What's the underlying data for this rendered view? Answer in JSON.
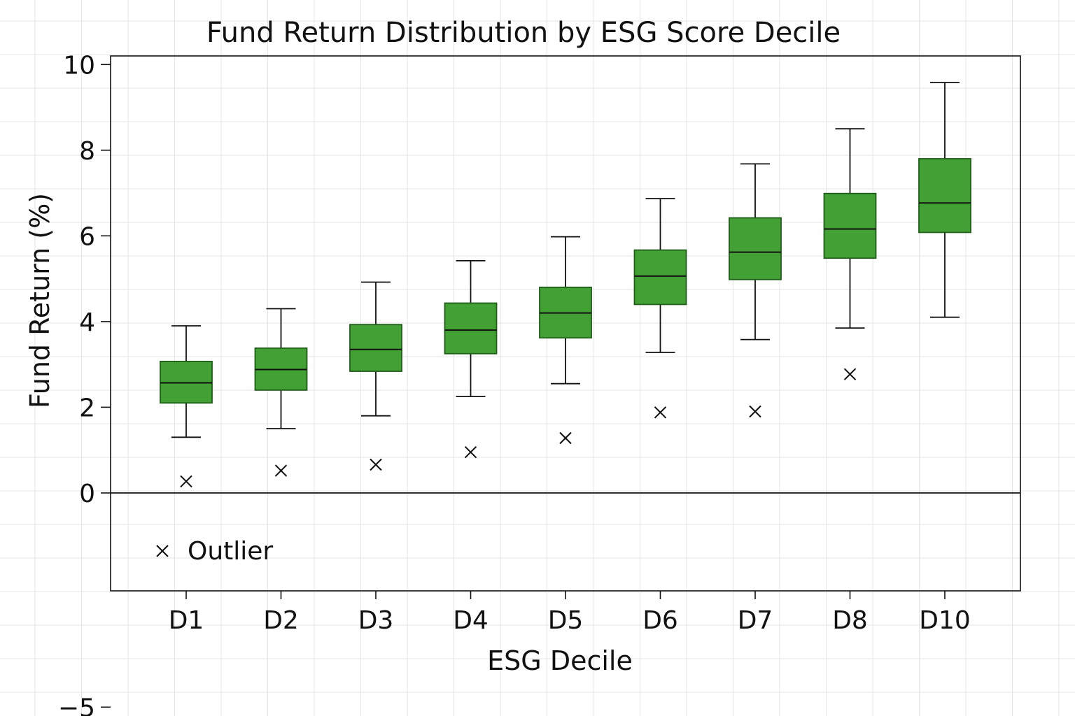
{
  "chart_data": {
    "type": "box",
    "title": "Fund Return Distribution by ESG Score Decile",
    "xlabel": "ESG Decile",
    "ylabel": "Fund Return (%)",
    "ylim": [
      -7.3,
      10.2
    ],
    "yticks": [
      {
        "value": 10,
        "label": "10"
      },
      {
        "value": 8,
        "label": "8"
      },
      {
        "value": 6,
        "label": "6"
      },
      {
        "value": 4,
        "label": "4"
      },
      {
        "value": 2,
        "label": "2"
      },
      {
        "value": 0,
        "label": "0"
      },
      {
        "value": -5,
        "label": "−5"
      }
    ],
    "grid": true,
    "legend": {
      "position": "bottom-left",
      "entries": [
        {
          "marker": "x",
          "label": "Outlier"
        }
      ]
    },
    "colors": {
      "box_fill": "#43a034",
      "box_edge": "#1f5e18",
      "line": "#111111"
    },
    "categories": [
      "D1",
      "D2",
      "D3",
      "D4",
      "D5",
      "D6",
      "D7",
      "D8",
      "D10"
    ],
    "boxes": [
      {
        "category": "D1",
        "whisker_low": 1.3,
        "q1": 2.1,
        "median": 2.57,
        "q3": 3.07,
        "whisker_high": 3.9,
        "outliers": [
          0.27
        ]
      },
      {
        "category": "D2",
        "whisker_low": 1.5,
        "q1": 2.4,
        "median": 2.88,
        "q3": 3.38,
        "whisker_high": 4.3,
        "outliers": [
          0.52
        ]
      },
      {
        "category": "D3",
        "whisker_low": 1.8,
        "q1": 2.84,
        "median": 3.35,
        "q3": 3.93,
        "whisker_high": 4.92,
        "outliers": [
          0.66
        ]
      },
      {
        "category": "D4",
        "whisker_low": 2.25,
        "q1": 3.25,
        "median": 3.8,
        "q3": 4.43,
        "whisker_high": 5.42,
        "outliers": [
          0.95
        ]
      },
      {
        "category": "D5",
        "whisker_low": 2.55,
        "q1": 3.62,
        "median": 4.2,
        "q3": 4.8,
        "whisker_high": 5.98,
        "outliers": [
          1.28
        ]
      },
      {
        "category": "D6",
        "whisker_low": 3.28,
        "q1": 4.4,
        "median": 5.06,
        "q3": 5.67,
        "whisker_high": 6.87,
        "outliers": [
          1.88
        ]
      },
      {
        "category": "D7",
        "whisker_low": 3.58,
        "q1": 4.98,
        "median": 5.62,
        "q3": 6.42,
        "whisker_high": 7.68,
        "outliers": [
          1.9
        ]
      },
      {
        "category": "D8",
        "whisker_low": 3.85,
        "q1": 5.48,
        "median": 6.16,
        "q3": 6.99,
        "whisker_high": 8.5,
        "outliers": [
          2.77
        ]
      },
      {
        "category": "D10",
        "whisker_low": 4.1,
        "q1": 6.08,
        "median": 6.77,
        "q3": 7.8,
        "whisker_high": 9.58,
        "outliers": []
      }
    ]
  }
}
